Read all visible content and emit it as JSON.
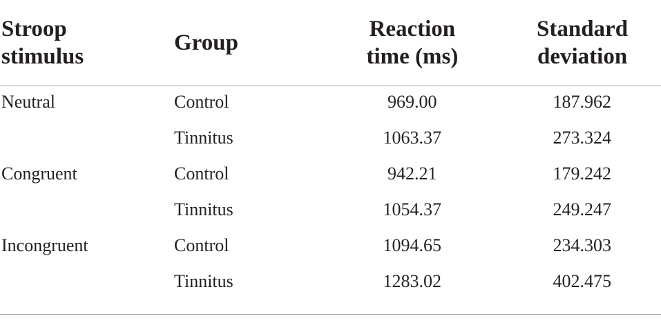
{
  "table": {
    "header": [
      [
        "Stroop",
        "stimulus"
      ],
      [
        "Group"
      ],
      [
        "Reaction",
        "time (ms)"
      ],
      [
        "Standard",
        "deviation"
      ]
    ],
    "groups": [
      {
        "stimulus": "Neutral",
        "rows": [
          [
            "Control",
            "969.00",
            "187.962"
          ],
          [
            "Tinnitus",
            "1063.37",
            "273.324"
          ]
        ]
      },
      {
        "stimulus": "Congruent",
        "rows": [
          [
            "Control",
            "942.21",
            "179.242"
          ],
          [
            "Tinnitus",
            "1054.37",
            "249.247"
          ]
        ]
      },
      {
        "stimulus": "Incongruent",
        "rows": [
          [
            "Control",
            "1094.65",
            "234.303"
          ],
          [
            "Tinnitus",
            "1283.02",
            "402.475"
          ]
        ]
      }
    ]
  }
}
